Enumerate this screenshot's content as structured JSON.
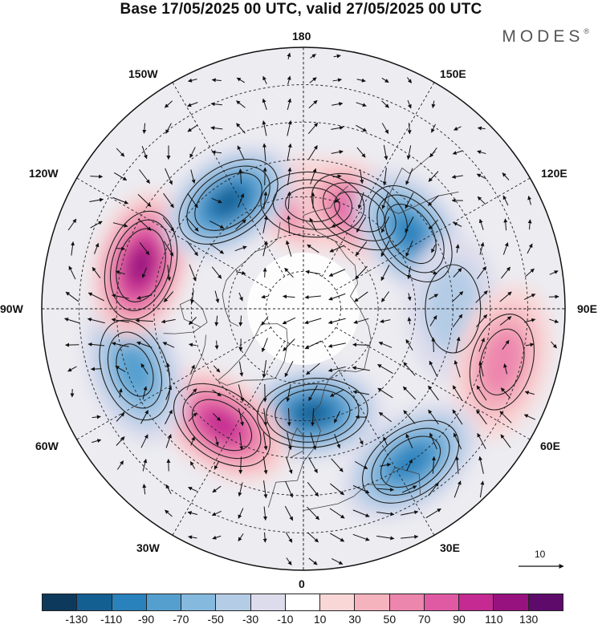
{
  "title": "Base 17/05/2025 00 UTC, valid 27/05/2025 00 UTC",
  "logo": "MODES",
  "logo_mark": "®",
  "longitude_labels": {
    "lon_180": "180",
    "lon_150E": "150E",
    "lon_120E": "120E",
    "lon_90E": "90E",
    "lon_60E": "60E",
    "lon_30E": "30E",
    "lon_0": "0",
    "lon_30W": "30W",
    "lon_60W": "60W",
    "lon_90W": "90W",
    "lon_120W": "120W",
    "lon_150W": "150W"
  },
  "reference_vector": {
    "value": "10"
  },
  "colorbar": {
    "colors": [
      "#0d3a5c",
      "#145f92",
      "#2a82bd",
      "#559fcf",
      "#86b9de",
      "#b4cce6",
      "#dcdcec",
      "#ffffff",
      "#f9d7d7",
      "#f4b3bd",
      "#ed86ad",
      "#e05aa3",
      "#c42a91",
      "#98127f",
      "#5e0a6b"
    ],
    "tick_labels": [
      "-130",
      "-110",
      "-90",
      "-70",
      "-50",
      "-30",
      "-10",
      "10",
      "30",
      "50",
      "70",
      "90",
      "110",
      "130"
    ]
  },
  "anomaly_centers": [
    {
      "lon": 175,
      "lat": 62,
      "value": 60
    },
    {
      "lon": 150,
      "lat": 60,
      "value": 70
    },
    {
      "lon": 125,
      "lat": 55,
      "value": -85
    },
    {
      "lon": 90,
      "lat": 50,
      "value": -20
    },
    {
      "lon": 75,
      "lat": 35,
      "value": 50
    },
    {
      "lon": 35,
      "lat": 40,
      "value": -90
    },
    {
      "lon": 5,
      "lat": 62,
      "value": -95
    },
    {
      "lon": -35,
      "lat": 52,
      "value": 80
    },
    {
      "lon": -70,
      "lat": 42,
      "value": -60
    },
    {
      "lon": -105,
      "lat": 45,
      "value": 100
    },
    {
      "lon": -145,
      "lat": 55,
      "value": -100
    }
  ]
}
